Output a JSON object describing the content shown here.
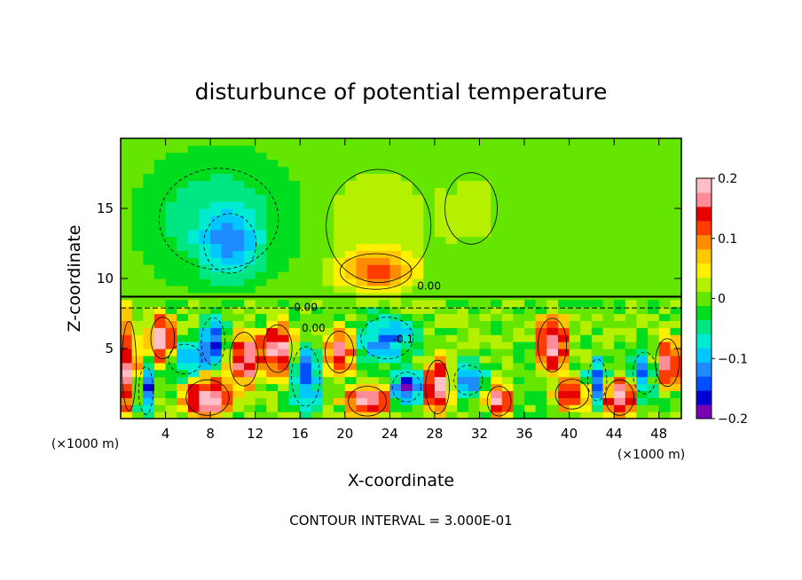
{
  "chart_data": {
    "type": "heatmap",
    "title": "disturbunce of potential temperature",
    "xlabel": "X-coordinate",
    "ylabel": "Z-coordinate",
    "x_unit": "(×1000 m)",
    "z_unit": "(×1000 m)",
    "footer": "CONTOUR INTERVAL = 3.000E-01",
    "xlim": [
      0,
      50
    ],
    "ylim": [
      0,
      20
    ],
    "x_ticks": [
      4,
      8,
      12,
      16,
      20,
      24,
      28,
      32,
      36,
      40,
      44,
      48
    ],
    "y_ticks": [
      5,
      10,
      15
    ],
    "colorbar": {
      "min": -0.2,
      "max": 0.2,
      "ticks": [
        0.2,
        0.1,
        0,
        -0.1,
        -0.2
      ],
      "tick_labels": [
        "0.2",
        "0.1",
        "0",
        "−0.1",
        "−0.2"
      ],
      "colors": [
        "#7a00b4",
        "#0000d2",
        "#0050ff",
        "#1e8cff",
        "#00c8ff",
        "#00ecd2",
        "#00e682",
        "#00dc1e",
        "#64e600",
        "#b4f000",
        "#fff000",
        "#ffc800",
        "#ff8c00",
        "#ff3c00",
        "#e60000",
        "#ff8c96",
        "#ffbec8"
      ]
    },
    "contour_labels": [
      {
        "x": 27.5,
        "z": 9.2,
        "text": "0.00"
      },
      {
        "x": 16.5,
        "z": 7.7,
        "text": "0.00"
      },
      {
        "x": 17.2,
        "z": 6.2,
        "text": "0.00"
      },
      {
        "x": 25.2,
        "z": 5.4,
        "text": "-0.1"
      }
    ],
    "regions": [
      {
        "x0": 2.5,
        "x1": 15.0,
        "z0": 10.0,
        "z1": 18.5,
        "v": -0.045
      },
      {
        "x0": 7.0,
        "x1": 12.5,
        "z0": 10.0,
        "z1": 15.0,
        "v": -0.075
      },
      {
        "x0": 17.5,
        "x1": 28.5,
        "z0": 9.0,
        "z1": 18.5,
        "v": 0.045
      },
      {
        "x0": 19.0,
        "x1": 26.5,
        "z0": 9.0,
        "z1": 12.0,
        "v": 0.1
      },
      {
        "x0": 28.5,
        "x1": 34.0,
        "z0": 12.0,
        "z1": 18.0,
        "v": 0.04
      },
      {
        "x0": 0.0,
        "x1": 1.5,
        "z0": 0.0,
        "z1": 7.5,
        "v": 0.2
      },
      {
        "x0": 1.5,
        "x1": 3.0,
        "z0": 0.0,
        "z1": 4.0,
        "v": -0.15
      },
      {
        "x0": 2.5,
        "x1": 5.0,
        "z0": 4.0,
        "z1": 7.5,
        "v": 0.2
      },
      {
        "x0": 4.0,
        "x1": 7.5,
        "z0": 3.0,
        "z1": 5.5,
        "v": -0.12
      },
      {
        "x0": 5.5,
        "x1": 10.0,
        "z0": 0.0,
        "z1": 3.0,
        "v": 0.2
      },
      {
        "x0": 7.0,
        "x1": 9.5,
        "z0": 3.5,
        "z1": 7.5,
        "v": -0.15
      },
      {
        "x0": 9.5,
        "x1": 12.5,
        "z0": 2.0,
        "z1": 6.5,
        "v": 0.18
      },
      {
        "x0": 12.5,
        "x1": 15.5,
        "z0": 3.0,
        "z1": 7.0,
        "v": 0.2
      },
      {
        "x0": 15.0,
        "x1": 18.0,
        "z0": 0.5,
        "z1": 5.5,
        "v": -0.13
      },
      {
        "x0": 18.0,
        "x1": 21.0,
        "z0": 3.0,
        "z1": 6.5,
        "v": 0.15
      },
      {
        "x0": 20.0,
        "x1": 24.0,
        "z0": 0.0,
        "z1": 2.5,
        "v": 0.19
      },
      {
        "x0": 21.0,
        "x1": 26.5,
        "z0": 4.0,
        "z1": 7.5,
        "v": -0.12
      },
      {
        "x0": 24.0,
        "x1": 27.0,
        "z0": 1.0,
        "z1": 3.5,
        "v": -0.16
      },
      {
        "x0": 27.0,
        "x1": 29.5,
        "z0": 0.0,
        "z1": 4.5,
        "v": 0.2
      },
      {
        "x0": 29.5,
        "x1": 32.5,
        "z0": 1.5,
        "z1": 4.0,
        "v": -0.14
      },
      {
        "x0": 32.5,
        "x1": 35.0,
        "z0": 0.0,
        "z1": 2.5,
        "v": 0.18
      },
      {
        "x0": 37.0,
        "x1": 40.0,
        "z0": 3.0,
        "z1": 7.5,
        "v": 0.2
      },
      {
        "x0": 38.5,
        "x1": 42.0,
        "z0": 0.5,
        "z1": 3.0,
        "v": 0.16
      },
      {
        "x0": 41.5,
        "x1": 43.5,
        "z0": 1.0,
        "z1": 4.5,
        "v": -0.14
      },
      {
        "x0": 43.0,
        "x1": 46.0,
        "z0": 0.0,
        "z1": 3.0,
        "v": 0.19
      },
      {
        "x0": 45.5,
        "x1": 48.0,
        "z0": 1.5,
        "z1": 5.0,
        "v": -0.12
      },
      {
        "x0": 47.5,
        "x1": 50.0,
        "z0": 2.0,
        "z1": 6.0,
        "v": 0.17
      }
    ]
  }
}
